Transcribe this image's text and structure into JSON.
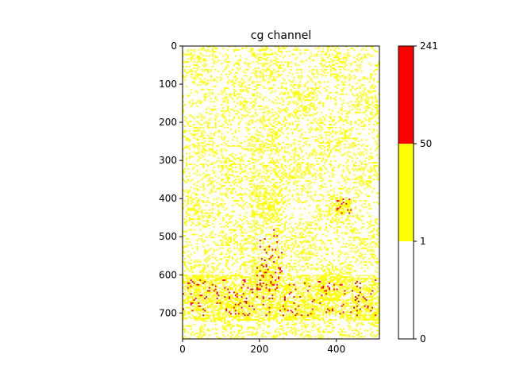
{
  "chart_data": {
    "type": "heatmap",
    "title": "cg channel",
    "xlabel": "",
    "ylabel": "",
    "xlim": [
      0,
      512
    ],
    "ylim": [
      768,
      0
    ],
    "x_ticks": [
      0,
      200,
      400
    ],
    "y_ticks": [
      0,
      100,
      200,
      300,
      400,
      500,
      600,
      700
    ],
    "grid": false,
    "colorbar": {
      "boundaries": [
        0,
        1,
        50,
        241
      ],
      "tick_labels": [
        "0",
        "1",
        "50",
        "241"
      ],
      "bins": [
        {
          "from": 0,
          "to": 1,
          "color": "#ffffff"
        },
        {
          "from": 1,
          "to": 50,
          "color": "#ffff00"
        },
        {
          "from": 50,
          "to": 241,
          "color": "#ff0000"
        }
      ]
    },
    "regions": [
      {
        "description": "dense yellow/red band",
        "x": [
          0,
          512
        ],
        "y": [
          600,
          720
        ],
        "level": "high"
      },
      {
        "description": "central vertical streak",
        "x": [
          180,
          260
        ],
        "y": [
          150,
          600
        ],
        "level": "medium"
      },
      {
        "description": "right cluster",
        "x": [
          400,
          440
        ],
        "y": [
          400,
          440
        ],
        "level": "high"
      }
    ]
  }
}
